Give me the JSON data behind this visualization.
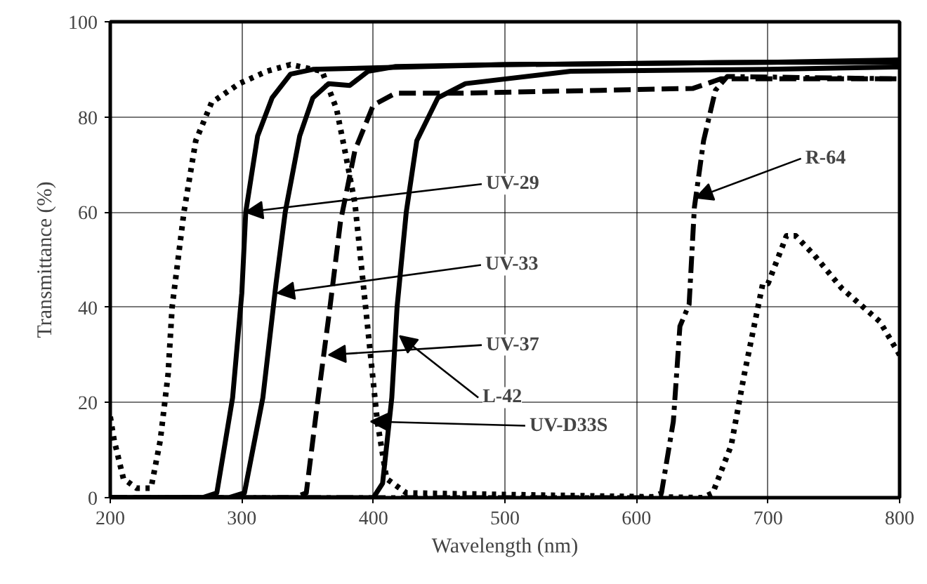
{
  "chart_data": {
    "type": "line",
    "xlabel": "Wavelength (nm)",
    "ylabel": "Transmittance (%)",
    "xlim": [
      200,
      800
    ],
    "ylim": [
      0,
      100
    ],
    "xticks": [
      200,
      300,
      400,
      500,
      600,
      700,
      800
    ],
    "yticks": [
      0,
      20,
      40,
      60,
      80,
      100
    ],
    "grid": true,
    "series": [
      {
        "color": "#000000",
        "line_style": "solid",
        "x": [
          200,
          270,
          281,
          293,
          300,
          303,
          312,
          323,
          337,
          354,
          500,
          700,
          800
        ],
        "values": [
          0,
          0,
          1,
          21,
          43,
          60,
          76,
          84,
          89,
          90,
          91,
          91.5,
          92
        ]
      },
      {
        "color": "#000000",
        "line_style": "solid",
        "x": [
          200,
          290,
          302,
          316,
          326,
          333,
          344,
          354,
          366,
          382,
          396,
          417,
          500,
          700,
          800
        ],
        "values": [
          0,
          0,
          1,
          21,
          45,
          60,
          76,
          84,
          87,
          86.6,
          89.6,
          90.6,
          91,
          91.5,
          91.5
        ]
      },
      {
        "color": "#000000",
        "line_style": "dashed",
        "x": [
          200,
          340,
          349,
          358,
          367,
          375,
          386,
          400,
          417,
          468,
          573,
          643,
          664,
          800
        ],
        "values": [
          0,
          0,
          1,
          21,
          40,
          58,
          73,
          82.5,
          85,
          85,
          85.6,
          86,
          88,
          88
        ]
      },
      {
        "color": "#000000",
        "line_style": "solid",
        "x": [
          200,
          400,
          407,
          414,
          418,
          425,
          433,
          449,
          470,
          550,
          700,
          800
        ],
        "values": [
          0,
          0,
          3,
          21,
          40,
          60,
          75,
          84,
          87,
          89.6,
          90,
          90.5
        ]
      },
      {
        "color": "#000000",
        "line_style": "dotted",
        "x": [
          200,
          203,
          210,
          220,
          231,
          238,
          244,
          247,
          256,
          265,
          277,
          298,
          319,
          337,
          361,
          372,
          379,
          386,
          393,
          403,
          410,
          425,
          650,
          658,
          672,
          682,
          696,
          700,
          714,
          721,
          735,
          756,
          785,
          800
        ],
        "values": [
          17,
          12,
          4,
          2,
          2,
          12,
          26,
          40,
          60,
          75,
          83,
          87,
          89.6,
          91,
          89.6,
          81.7,
          72,
          61.8,
          43,
          16,
          4,
          1,
          0,
          1,
          11,
          26,
          45,
          45,
          55,
          55,
          51,
          44,
          37,
          30
        ]
      },
      {
        "color": "#000000",
        "line_style": "dashdot",
        "x": [
          200,
          610,
          619,
          628,
          633,
          640,
          644,
          651,
          660,
          669,
          800
        ],
        "values": [
          0,
          0,
          1,
          16,
          36,
          40.6,
          61,
          75,
          85.6,
          88.5,
          88
        ]
      }
    ],
    "annotations": [
      {
        "text": "UV-29",
        "x": 303,
        "y": 60
      },
      {
        "text": "UV-33",
        "x": 327,
        "y": 43
      },
      {
        "text": "UV-37",
        "x": 366,
        "y": 30
      },
      {
        "text": "L-42",
        "x": 420,
        "y": 34
      },
      {
        "text": "UV-D33S",
        "x": 398,
        "y": 16
      },
      {
        "text": "R-64",
        "x": 645,
        "y": 63
      }
    ]
  }
}
